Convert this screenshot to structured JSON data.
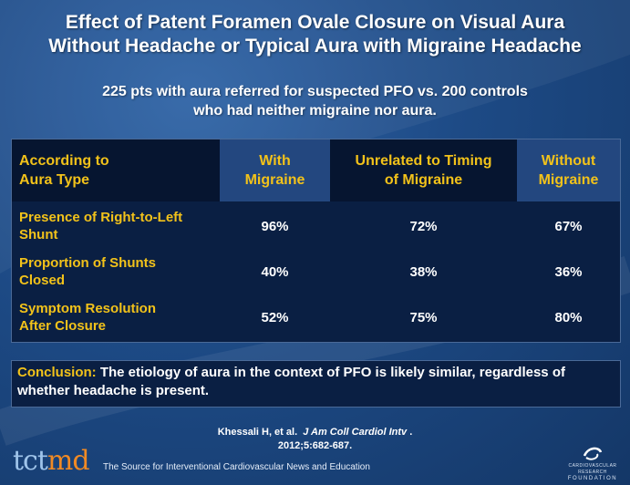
{
  "slide": {
    "title_line1": "Effect of Patent Foramen Ovale Closure on Visual Aura",
    "title_line2": "Without Headache or Typical Aura with Migraine Headache",
    "subtitle_line1": "225 pts with aura referred for suspected PFO vs. 200 controls",
    "subtitle_line2": "who had neither migraine nor aura."
  },
  "table": {
    "headers": [
      {
        "line1": "According to",
        "line2": "Aura Type"
      },
      {
        "line1": "With",
        "line2": "Migraine"
      },
      {
        "line1": "Unrelated to Timing",
        "line2": "of Migraine"
      },
      {
        "line1": "Without",
        "line2": "Migraine"
      }
    ],
    "rows": [
      {
        "label1": "Presence of Right-to-Left",
        "label2": "Shunt",
        "values": [
          "96%",
          "72%",
          "67%"
        ]
      },
      {
        "label1": "Proportion of Shunts",
        "label2": "Closed",
        "values": [
          "40%",
          "38%",
          "36%"
        ]
      },
      {
        "label1": "Symptom Resolution",
        "label2": "After Closure",
        "values": [
          "52%",
          "75%",
          "80%"
        ]
      }
    ]
  },
  "conclusion": {
    "lead": "Conclusion:",
    "text": "The etiology of aura in the context of PFO is likely similar, regardless of whether headache is present."
  },
  "citation": {
    "authors": "Khessali H, et al.",
    "journal": "J Am Coll Cardiol Intv",
    "details": "2012;5:682-687."
  },
  "footer": {
    "logo_tct": "tct",
    "logo_md": "md",
    "tagline": "The Source for Interventional Cardiovascular News and Education",
    "foundation_line1": "CARDIOVASCULAR RESEARCH",
    "foundation_line2": "FOUNDATION"
  },
  "colors": {
    "accent_yellow": "#f2c21a",
    "header_band": "#061530",
    "header_alt": "#23477f",
    "table_bg": "#0a1f43"
  }
}
